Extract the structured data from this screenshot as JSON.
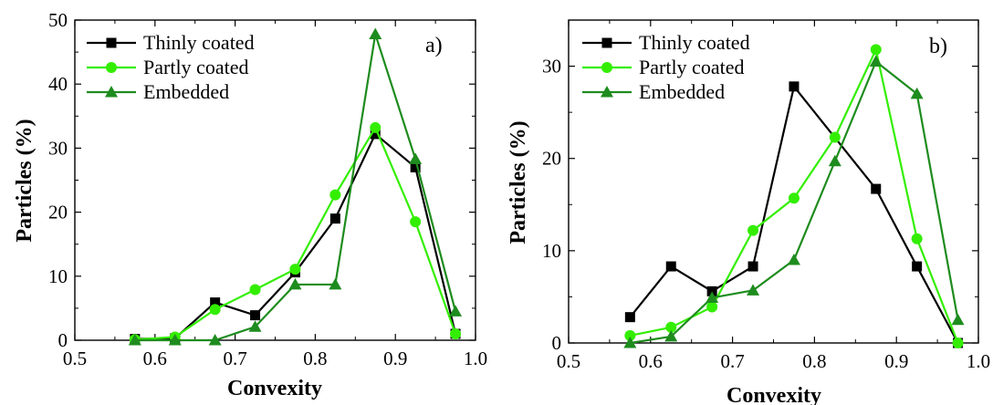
{
  "chart_data": [
    {
      "type": "line",
      "panel_label": "a)",
      "xlabel": "Convexity",
      "ylabel": "Particles (%)",
      "xlim": [
        0.5,
        1.0
      ],
      "ylim": [
        0,
        50
      ],
      "xticks": [
        "0.5",
        "0.6",
        "0.7",
        "0.8",
        "0.9",
        "1.0"
      ],
      "yticks": [
        "0",
        "10",
        "20",
        "30",
        "40",
        "50"
      ],
      "grid": false,
      "legend_position": "top-left",
      "series": [
        {
          "name": "Thinly coated",
          "color": "#000000",
          "marker": "square",
          "x": [
            0.575,
            0.625,
            0.675,
            0.725,
            0.775,
            0.825,
            0.875,
            0.925,
            0.975
          ],
          "y": [
            0.2,
            0.3,
            5.9,
            3.9,
            10.6,
            19.0,
            32.2,
            27.0,
            1.0
          ]
        },
        {
          "name": "Partly coated",
          "color": "#33ee00",
          "marker": "circle",
          "x": [
            0.575,
            0.625,
            0.675,
            0.725,
            0.775,
            0.825,
            0.875,
            0.925,
            0.975
          ],
          "y": [
            0.1,
            0.5,
            4.8,
            7.9,
            11.1,
            22.7,
            33.2,
            18.5,
            1.0
          ]
        },
        {
          "name": "Embedded",
          "color": "#1e8c1e",
          "marker": "triangle",
          "x": [
            0.575,
            0.625,
            0.675,
            0.725,
            0.775,
            0.825,
            0.875,
            0.925,
            0.975
          ],
          "y": [
            0.0,
            0.0,
            0.0,
            2.1,
            8.7,
            8.7,
            47.8,
            28.3,
            4.5
          ]
        }
      ]
    },
    {
      "type": "line",
      "panel_label": "b)",
      "xlabel": "Convexity",
      "ylabel": "Particles (%)",
      "xlim": [
        0.5,
        1.0
      ],
      "ylim": [
        0,
        35
      ],
      "xticks": [
        "0.5",
        "0.6",
        "0.7",
        "0.8",
        "0.9",
        "1.0"
      ],
      "yticks": [
        "0",
        "10",
        "20",
        "30"
      ],
      "grid": false,
      "legend_position": "top-left",
      "series": [
        {
          "name": "Thinly coated",
          "color": "#000000",
          "marker": "square",
          "x": [
            0.575,
            0.625,
            0.675,
            0.725,
            0.775,
            0.875,
            0.925,
            0.975
          ],
          "y": [
            2.8,
            8.3,
            5.6,
            8.3,
            27.8,
            16.7,
            8.3,
            0.0
          ]
        },
        {
          "name": "Partly coated",
          "color": "#33ee00",
          "marker": "circle",
          "x": [
            0.575,
            0.625,
            0.675,
            0.725,
            0.775,
            0.825,
            0.875,
            0.925,
            0.975
          ],
          "y": [
            0.8,
            1.7,
            3.9,
            12.2,
            15.7,
            22.3,
            31.8,
            11.3,
            0.0
          ]
        },
        {
          "name": "Embedded",
          "color": "#1e8c1e",
          "marker": "triangle",
          "x": [
            0.575,
            0.625,
            0.675,
            0.725,
            0.775,
            0.825,
            0.875,
            0.925,
            0.975
          ],
          "y": [
            0.0,
            0.7,
            4.9,
            5.7,
            9.0,
            19.7,
            30.5,
            27.0,
            2.5
          ]
        }
      ]
    }
  ]
}
